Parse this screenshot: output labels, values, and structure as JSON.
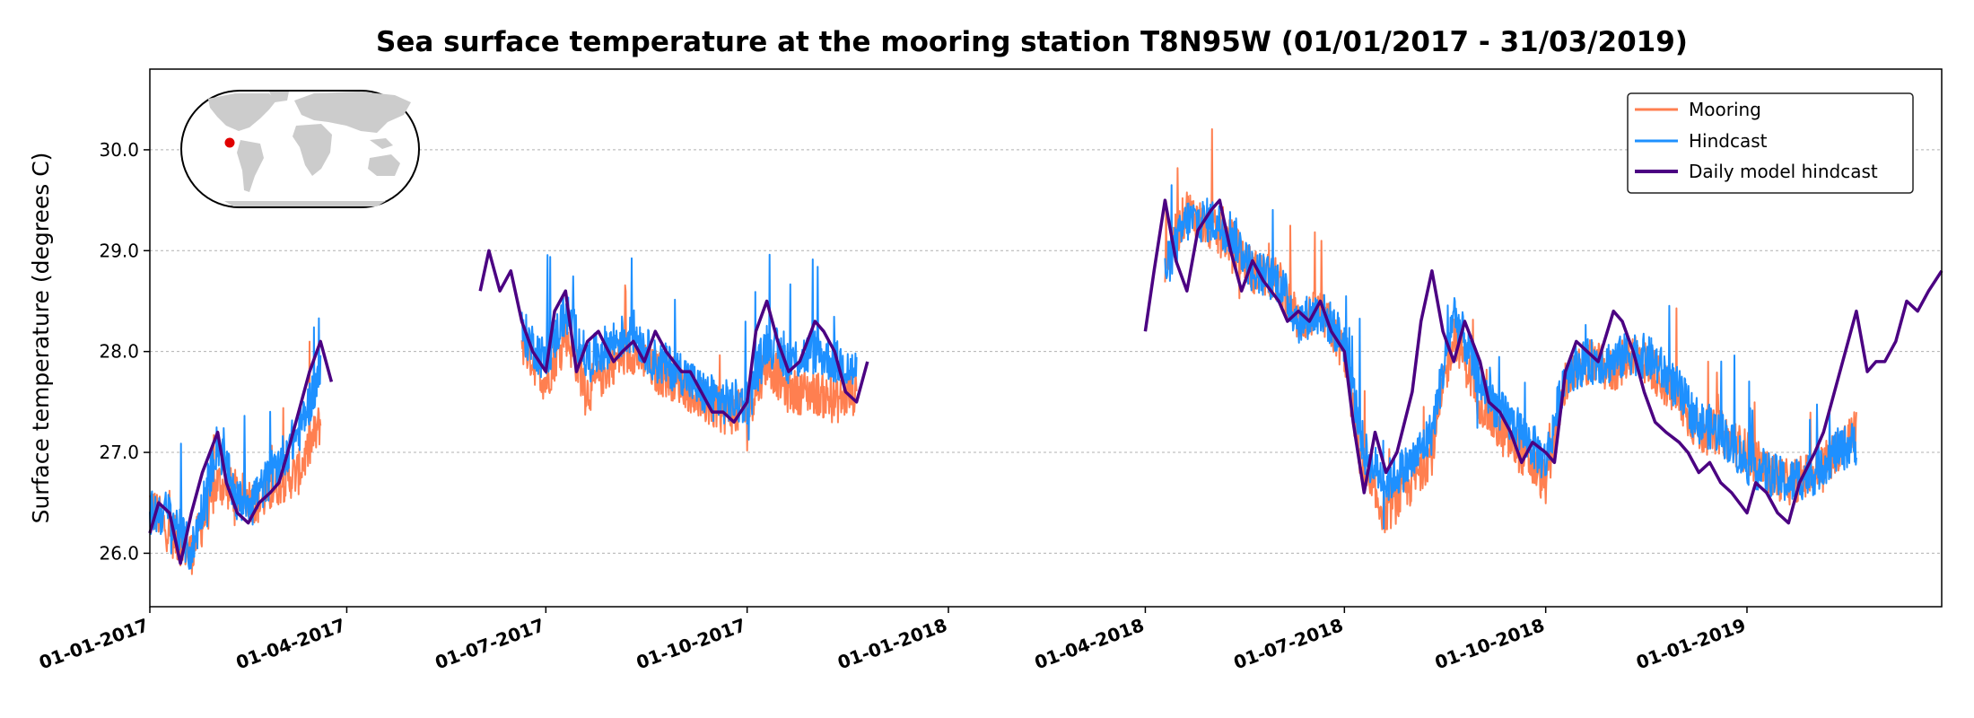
{
  "chart_data": {
    "type": "line",
    "title": "Sea surface temperature at the mooring station T8N95W (01/01/2017 - 31/03/2019)",
    "xlabel": "",
    "ylabel": "Surface temperature (degrees C)",
    "xlim": [
      "2017-01-01",
      "2019-03-31"
    ],
    "ylim": [
      25.47,
      30.8
    ],
    "yticks": [
      26.0,
      27.0,
      28.0,
      29.0,
      30.0
    ],
    "xticks": [
      "2017-01-01",
      "2017-04-01",
      "2017-07-01",
      "2017-10-01",
      "2018-01-01",
      "2018-04-01",
      "2018-07-01",
      "2018-10-01",
      "2019-01-01"
    ],
    "xtick_labels": [
      "01-01-2017",
      "01-04-2017",
      "01-07-2017",
      "01-10-2017",
      "01-01-2018",
      "01-04-2018",
      "01-07-2018",
      "01-10-2018",
      "01-01-2019"
    ],
    "grid": "horizontal dotted",
    "legend_position": "top-right",
    "inset": "world map with station location marked",
    "series": [
      {
        "name": "Mooring",
        "color": "#ff7f50",
        "kind": "hourly, noisy",
        "segments": [
          {
            "x": [
              "2017-01-01",
              "2017-01-10",
              "2017-01-20",
              "2017-02-01",
              "2017-02-10",
              "2017-02-20",
              "2017-03-01",
              "2017-03-10",
              "2017-03-20"
            ],
            "y": [
              26.5,
              26.2,
              26.0,
              26.7,
              26.6,
              26.5,
              26.7,
              26.8,
              27.3
            ]
          },
          {
            "x": [
              "2017-06-20",
              "2017-07-01",
              "2017-07-10",
              "2017-07-20",
              "2017-08-01",
              "2017-08-10",
              "2017-08-20",
              "2017-09-01",
              "2017-09-10",
              "2017-09-20",
              "2017-10-01",
              "2017-10-10",
              "2017-10-20",
              "2017-11-01",
              "2017-11-10",
              "2017-11-20"
            ],
            "y": [
              28.1,
              27.7,
              28.2,
              27.6,
              27.9,
              28.0,
              27.8,
              27.7,
              27.5,
              27.4,
              27.4,
              27.9,
              27.6,
              27.6,
              27.5,
              27.6
            ]
          },
          {
            "x": [
              "2018-04-10",
              "2018-04-20",
              "2018-05-01",
              "2018-05-10",
              "2018-05-20",
              "2018-06-01",
              "2018-06-10",
              "2018-06-20",
              "2018-07-01",
              "2018-07-10",
              "2018-07-20",
              "2018-08-01",
              "2018-08-10",
              "2018-08-20",
              "2018-09-01",
              "2018-09-10",
              "2018-09-20",
              "2018-10-01",
              "2018-10-10",
              "2018-10-20",
              "2018-11-01",
              "2018-11-10",
              "2018-11-20",
              "2018-12-01",
              "2018-12-10",
              "2018-12-20",
              "2019-01-01",
              "2019-01-10",
              "2019-01-20",
              "2019-02-01",
              "2019-02-10",
              "2019-02-20"
            ],
            "y": [
              28.9,
              29.4,
              29.2,
              29.1,
              28.8,
              28.7,
              28.3,
              28.4,
              28.0,
              26.7,
              26.4,
              26.7,
              27.0,
              28.2,
              27.5,
              27.2,
              27.0,
              26.7,
              27.7,
              27.9,
              27.8,
              28.0,
              27.8,
              27.5,
              27.2,
              27.2,
              27.0,
              26.8,
              26.7,
              26.8,
              27.0,
              27.2
            ]
          }
        ]
      },
      {
        "name": "Hindcast",
        "color": "#1e90ff",
        "kind": "hourly, noisy",
        "segments": [
          {
            "x": [
              "2017-01-01",
              "2017-01-10",
              "2017-01-20",
              "2017-02-01",
              "2017-02-10",
              "2017-02-20",
              "2017-03-01",
              "2017-03-10",
              "2017-03-20"
            ],
            "y": [
              26.4,
              26.4,
              26.0,
              27.1,
              26.5,
              26.6,
              26.9,
              27.2,
              27.8
            ]
          },
          {
            "x": [
              "2017-06-20",
              "2017-07-01",
              "2017-07-10",
              "2017-07-20",
              "2017-08-01",
              "2017-08-10",
              "2017-08-20",
              "2017-09-01",
              "2017-09-10",
              "2017-09-20",
              "2017-10-01",
              "2017-10-10",
              "2017-10-20",
              "2017-11-01",
              "2017-11-10",
              "2017-11-20"
            ],
            "y": [
              28.2,
              27.9,
              28.4,
              27.9,
              28.1,
              28.2,
              27.9,
              27.8,
              27.6,
              27.5,
              27.5,
              28.1,
              27.9,
              28.0,
              27.9,
              27.8
            ]
          },
          {
            "x": [
              "2018-04-10",
              "2018-04-20",
              "2018-05-01",
              "2018-05-10",
              "2018-05-20",
              "2018-06-01",
              "2018-06-10",
              "2018-06-20",
              "2018-07-01",
              "2018-07-10",
              "2018-07-20",
              "2018-08-01",
              "2018-08-10",
              "2018-08-20",
              "2018-09-01",
              "2018-09-10",
              "2018-09-20",
              "2018-10-01",
              "2018-10-10",
              "2018-10-20",
              "2018-11-01",
              "2018-11-10",
              "2018-11-20",
              "2018-12-01",
              "2018-12-10",
              "2018-12-20",
              "2019-01-01",
              "2019-01-10",
              "2019-01-20",
              "2019-02-01",
              "2019-02-10",
              "2019-02-20"
            ],
            "y": [
              28.8,
              29.3,
              29.3,
              29.2,
              28.8,
              28.7,
              28.3,
              28.4,
              28.1,
              27.0,
              26.7,
              26.9,
              27.2,
              28.4,
              27.7,
              27.4,
              27.2,
              26.9,
              27.8,
              27.9,
              27.9,
              28.0,
              27.9,
              27.6,
              27.3,
              27.2,
              26.9,
              26.8,
              26.7,
              26.8,
              27.0,
              27.1
            ]
          }
        ]
      },
      {
        "name": "Daily model hindcast",
        "color": "#4b0082",
        "kind": "daily",
        "segments": [
          {
            "x": [
              "2017-01-01",
              "2017-01-05",
              "2017-01-10",
              "2017-01-15",
              "2017-01-20",
              "2017-01-25",
              "2017-02-01",
              "2017-02-05",
              "2017-02-10",
              "2017-02-15",
              "2017-02-20",
              "2017-02-25",
              "2017-03-01",
              "2017-03-05",
              "2017-03-10",
              "2017-03-15",
              "2017-03-20",
              "2017-03-25"
            ],
            "y": [
              26.2,
              26.5,
              26.4,
              25.9,
              26.4,
              26.8,
              27.2,
              26.7,
              26.4,
              26.3,
              26.5,
              26.6,
              26.7,
              27.0,
              27.4,
              27.8,
              28.1,
              27.7
            ]
          },
          {
            "x": [
              "2017-06-01",
              "2017-06-05",
              "2017-06-10",
              "2017-06-15",
              "2017-06-20",
              "2017-06-25",
              "2017-07-01",
              "2017-07-05",
              "2017-07-10",
              "2017-07-15",
              "2017-07-20",
              "2017-07-25",
              "2017-08-01",
              "2017-08-05",
              "2017-08-10",
              "2017-08-15",
              "2017-08-20",
              "2017-08-25",
              "2017-09-01",
              "2017-09-05",
              "2017-09-10",
              "2017-09-15",
              "2017-09-20",
              "2017-09-25",
              "2017-10-01",
              "2017-10-05",
              "2017-10-10",
              "2017-10-15",
              "2017-10-20",
              "2017-10-25",
              "2017-11-01",
              "2017-11-05",
              "2017-11-10",
              "2017-11-15",
              "2017-11-20",
              "2017-11-25"
            ],
            "y": [
              28.6,
              29.0,
              28.6,
              28.8,
              28.3,
              28.0,
              27.8,
              28.4,
              28.6,
              27.8,
              28.1,
              28.2,
              27.9,
              28.0,
              28.1,
              27.9,
              28.2,
              28.0,
              27.8,
              27.8,
              27.6,
              27.4,
              27.4,
              27.3,
              27.5,
              28.2,
              28.5,
              28.1,
              27.8,
              27.9,
              28.3,
              28.2,
              28.0,
              27.6,
              27.5,
              27.9
            ]
          },
          {
            "x": [
              "2018-04-01",
              "2018-04-05",
              "2018-04-10",
              "2018-04-15",
              "2018-04-20",
              "2018-04-25",
              "2018-05-01",
              "2018-05-05",
              "2018-05-10",
              "2018-05-15",
              "2018-05-20",
              "2018-05-25",
              "2018-06-01",
              "2018-06-05",
              "2018-06-10",
              "2018-06-15",
              "2018-06-20",
              "2018-06-25",
              "2018-07-01",
              "2018-07-05",
              "2018-07-10",
              "2018-07-15",
              "2018-07-20",
              "2018-07-25",
              "2018-08-01",
              "2018-08-05",
              "2018-08-10",
              "2018-08-15",
              "2018-08-20",
              "2018-08-25",
              "2018-09-01",
              "2018-09-05",
              "2018-09-10",
              "2018-09-15",
              "2018-09-20",
              "2018-09-25",
              "2018-10-01",
              "2018-10-05",
              "2018-10-10",
              "2018-10-15",
              "2018-10-20",
              "2018-10-25",
              "2018-11-01",
              "2018-11-05",
              "2018-11-10",
              "2018-11-15",
              "2018-11-20",
              "2018-11-25",
              "2018-12-01",
              "2018-12-05",
              "2018-12-10",
              "2018-12-15",
              "2018-12-20",
              "2018-12-25",
              "2019-01-01",
              "2019-01-05",
              "2019-01-10",
              "2019-01-15",
              "2019-01-20",
              "2019-01-25",
              "2019-02-01",
              "2019-02-05",
              "2019-02-10",
              "2019-02-15",
              "2019-02-20",
              "2019-02-25",
              "2019-03-01",
              "2019-03-05",
              "2019-03-10",
              "2019-03-15",
              "2019-03-20",
              "2019-03-25",
              "2019-03-31"
            ],
            "y": [
              28.2,
              28.8,
              29.5,
              28.9,
              28.6,
              29.2,
              29.4,
              29.5,
              29.0,
              28.6,
              28.9,
              28.7,
              28.5,
              28.3,
              28.4,
              28.3,
              28.5,
              28.2,
              28.0,
              27.3,
              26.6,
              27.2,
              26.8,
              27.0,
              27.6,
              28.3,
              28.8,
              28.2,
              27.9,
              28.3,
              27.9,
              27.5,
              27.4,
              27.2,
              26.9,
              27.1,
              27.0,
              26.9,
              27.8,
              28.1,
              28.0,
              27.9,
              28.4,
              28.3,
              28.0,
              27.6,
              27.3,
              27.2,
              27.1,
              27.0,
              26.8,
              26.9,
              26.7,
              26.6,
              26.4,
              26.7,
              26.6,
              26.4,
              26.3,
              26.7,
              27.0,
              27.2,
              27.6,
              28.0,
              28.4,
              27.8,
              27.9,
              27.9,
              28.1,
              28.5,
              28.4,
              28.6,
              28.8
            ]
          }
        ]
      }
    ]
  }
}
